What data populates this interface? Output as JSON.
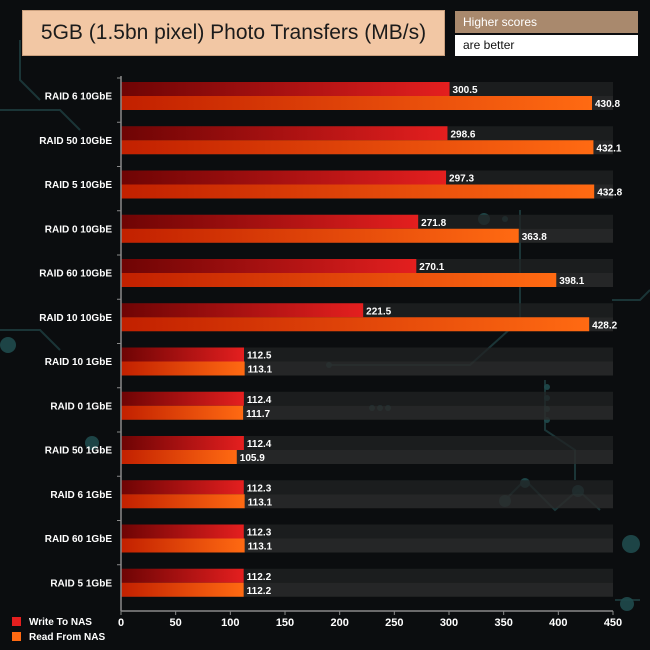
{
  "header": {
    "title": "5GB (1.5bn pixel) Photo Transfers (MB/s)",
    "note_line1": "Higher scores",
    "note_line2": "are better"
  },
  "colors": {
    "write": "#e41f1f",
    "write_dark": "#6e0404",
    "read": "#ff6a12",
    "read_dark": "#c22000",
    "title_bg": "#f2c7a4",
    "note_bg": "#a9896d"
  },
  "chart_data": {
    "type": "bar",
    "orientation": "horizontal",
    "title": "5GB (1.5bn pixel) Photo Transfers (MB/s)",
    "categories": [
      "RAID 6 10GbE",
      "RAID 50 10GbE",
      "RAID 5 10GbE",
      "RAID 0 10GbE",
      "RAID 60 10GbE",
      "RAID 10 10GbE",
      "RAID 10 1GbE",
      "RAID 0 1GbE",
      "RAID 50 1GbE",
      "RAID 6 1GbE",
      "RAID 60 1GbE",
      "RAID 5 1GbE"
    ],
    "series": [
      {
        "name": "Write To NAS",
        "values": [
          300.5,
          298.6,
          297.3,
          271.8,
          270.1,
          221.5,
          112.5,
          112.4,
          112.4,
          112.3,
          112.3,
          112.2
        ]
      },
      {
        "name": "Read From NAS",
        "values": [
          430.8,
          432.1,
          432.8,
          363.8,
          398.1,
          428.2,
          113.1,
          111.7,
          105.9,
          113.1,
          113.1,
          112.2
        ]
      }
    ],
    "xlim": [
      0,
      450
    ],
    "xticks": [
      0,
      50,
      100,
      150,
      200,
      250,
      300,
      350,
      400,
      450
    ],
    "xlabel": "",
    "ylabel": "",
    "grid": false,
    "legend_position": "bottom-left"
  }
}
